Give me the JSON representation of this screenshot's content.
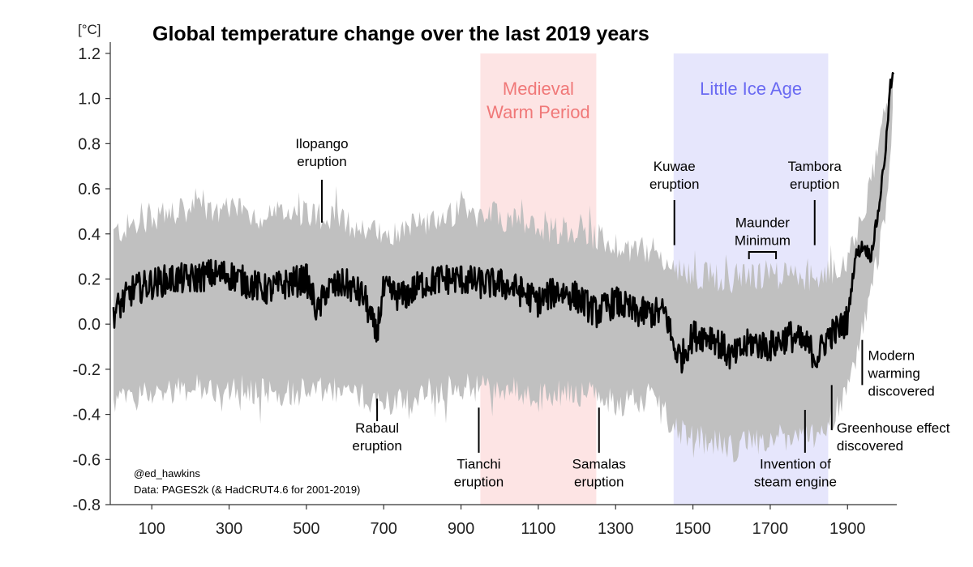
{
  "chart_data": {
    "type": "line",
    "title": "Global temperature change over the last 2019 years",
    "ylabel": "[°C]",
    "xlabel": "",
    "xlim": [
      1,
      2019
    ],
    "ylim": [
      -0.8,
      1.25
    ],
    "x_ticks": [
      100,
      300,
      500,
      700,
      900,
      1100,
      1300,
      1500,
      1700,
      1900
    ],
    "y_ticks": [
      1.2,
      1.0,
      0.8,
      0.6,
      0.4,
      0.2,
      0.0,
      -0.2,
      -0.4,
      -0.6,
      -0.8
    ],
    "y_tick_labels": [
      "1.2",
      "1.0",
      "0.8",
      "0.6",
      "0.4",
      "0.2",
      "0.0",
      "-0.2",
      "-0.4",
      "-0.6",
      "-0.8"
    ],
    "grid": false,
    "series": [
      {
        "name": "",
        "color": "#000000",
        "x": [
          1,
          50,
          100,
          150,
          200,
          250,
          300,
          350,
          400,
          450,
          500,
          530,
          550,
          600,
          650,
          680,
          700,
          750,
          800,
          850,
          900,
          950,
          1000,
          1050,
          1100,
          1150,
          1200,
          1250,
          1300,
          1350,
          1400,
          1430,
          1450,
          1470,
          1500,
          1550,
          1600,
          1650,
          1700,
          1750,
          1800,
          1820,
          1850,
          1880,
          1900,
          1920,
          1940,
          1960,
          1980,
          2000,
          2010,
          2019
        ],
        "y": [
          0.05,
          0.15,
          0.18,
          0.2,
          0.2,
          0.22,
          0.22,
          0.18,
          0.15,
          0.18,
          0.2,
          0.05,
          0.15,
          0.18,
          0.12,
          -0.05,
          0.15,
          0.12,
          0.18,
          0.2,
          0.2,
          0.18,
          0.18,
          0.15,
          0.1,
          0.15,
          0.12,
          0.05,
          0.1,
          0.05,
          0.05,
          0.05,
          -0.1,
          -0.15,
          -0.05,
          -0.05,
          -0.15,
          -0.08,
          -0.1,
          -0.05,
          -0.1,
          -0.15,
          -0.05,
          -0.02,
          0.02,
          0.3,
          0.35,
          0.3,
          0.5,
          0.8,
          1.05,
          1.1
        ]
      }
    ],
    "uncertainty_band": {
      "color": "#c0c0c0",
      "x": [
        1,
        100,
        200,
        300,
        400,
        500,
        600,
        700,
        800,
        900,
        1000,
        1100,
        1200,
        1300,
        1400,
        1450,
        1500,
        1600,
        1700,
        1800,
        1850,
        1900,
        1950,
        2000,
        2019
      ],
      "upper": [
        0.4,
        0.48,
        0.5,
        0.5,
        0.48,
        0.5,
        0.45,
        0.4,
        0.45,
        0.5,
        0.48,
        0.42,
        0.42,
        0.35,
        0.32,
        0.25,
        0.22,
        0.2,
        0.22,
        0.2,
        0.22,
        0.3,
        0.55,
        0.95,
        1.15
      ],
      "lower": [
        -0.35,
        -0.3,
        -0.28,
        -0.28,
        -0.3,
        -0.3,
        -0.3,
        -0.35,
        -0.3,
        -0.28,
        -0.28,
        -0.32,
        -0.3,
        -0.35,
        -0.32,
        -0.45,
        -0.5,
        -0.55,
        -0.5,
        -0.5,
        -0.45,
        -0.3,
        0.05,
        0.5,
        0.95
      ]
    },
    "periods": [
      {
        "label_lines": [
          "Medieval",
          "Warm Period"
        ],
        "x_start": 950,
        "x_end": 1250,
        "fill": "#fde4e4",
        "text_color": "#f07878"
      },
      {
        "label_lines": [
          "Little Ice Age"
        ],
        "x_start": 1450,
        "x_end": 1850,
        "fill": "#e6e6fc",
        "text_color": "#6a6af2"
      }
    ],
    "annotations": [
      {
        "lines": [
          "Ilopango",
          "eruption"
        ],
        "x": 540,
        "marker_y1": 0.45,
        "marker_y2": 0.64,
        "text_y": 0.78,
        "anchor": "middle",
        "text_x": 540
      },
      {
        "lines": [
          "Rabaul",
          "eruption"
        ],
        "x": 683,
        "marker_y1": -0.33,
        "marker_y2": -0.43,
        "text_y": -0.48,
        "anchor": "middle",
        "text_x": 683
      },
      {
        "lines": [
          "Tianchi",
          "eruption"
        ],
        "x": 946,
        "marker_y1": -0.37,
        "marker_y2": -0.57,
        "text_y": -0.64,
        "anchor": "middle",
        "text_x": 946
      },
      {
        "lines": [
          "Samalas",
          "eruption"
        ],
        "x": 1257,
        "marker_y1": -0.37,
        "marker_y2": -0.57,
        "text_y": -0.64,
        "anchor": "middle",
        "text_x": 1257
      },
      {
        "lines": [
          "Kuwae",
          "eruption"
        ],
        "x": 1452,
        "marker_y1": 0.35,
        "marker_y2": 0.55,
        "text_y": 0.68,
        "anchor": "middle",
        "text_x": 1452
      },
      {
        "lines": [
          "Tambora",
          "eruption"
        ],
        "x": 1815,
        "marker_y1": 0.35,
        "marker_y2": 0.55,
        "text_y": 0.68,
        "anchor": "middle",
        "text_x": 1815
      },
      {
        "lines": [
          "Invention of",
          "steam engine"
        ],
        "x": 1790,
        "marker_y1": -0.38,
        "marker_y2": -0.57,
        "text_y": -0.64,
        "anchor": "middle",
        "text_x": 1765
      },
      {
        "lines": [
          "Greenhouse effect",
          "discovered"
        ],
        "x": 1859,
        "marker_y1": -0.27,
        "marker_y2": -0.47,
        "text_y": -0.48,
        "anchor": "start",
        "text_x": 1872
      },
      {
        "lines": [
          "Modern",
          "warming",
          "discovered"
        ],
        "x": 1938,
        "marker_y1": -0.07,
        "marker_y2": -0.27,
        "text_y": -0.16,
        "anchor": "start",
        "text_x": 1953
      }
    ],
    "bracket": {
      "lines": [
        "Maunder",
        "Minimum"
      ],
      "x_start": 1645,
      "x_end": 1715,
      "y": 0.32,
      "text_y": 0.43
    },
    "credits": [
      "@ed_hawkins",
      "Data: PAGES2k (& HadCRUT4.6 for 2001-2019)"
    ]
  }
}
